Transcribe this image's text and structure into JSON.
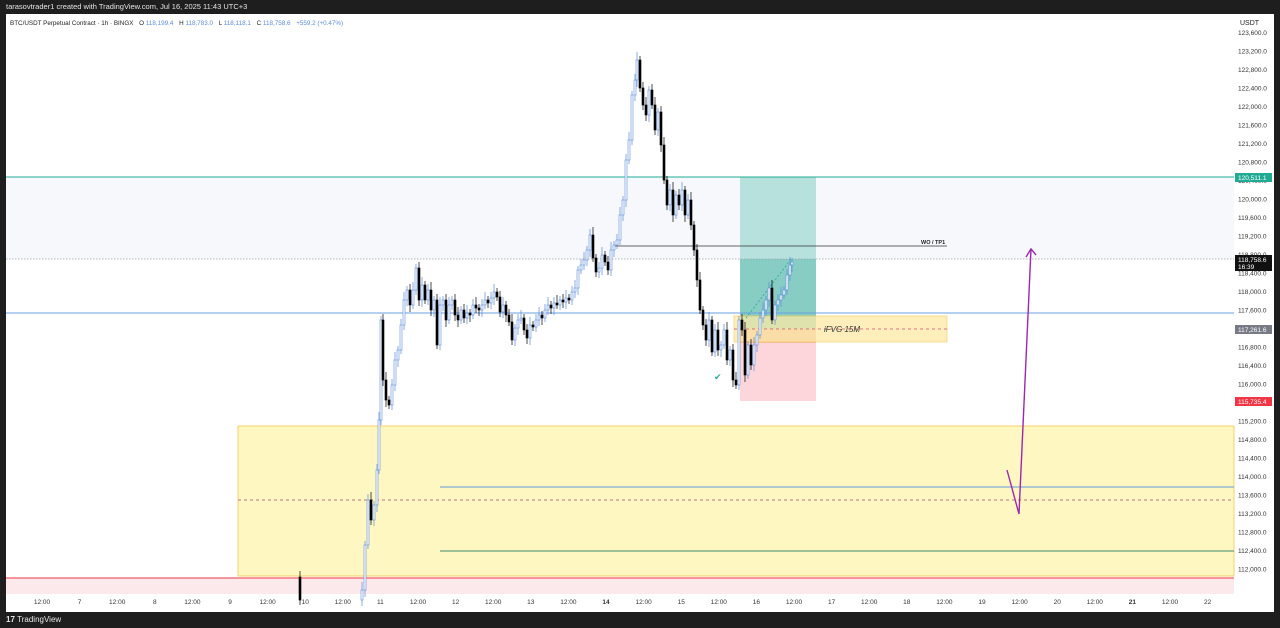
{
  "watermark_header": "tarasovtrader1 created with TradingView.com, Jul 16, 2025 11:43 UTC+3",
  "footer_brand": "TradingView",
  "footer_logo_glyph": "17",
  "currency_label": "USDT",
  "symbol": {
    "title": "BTC/USDT Perpetual Contract · 1h · BINGX",
    "open_label": "O",
    "open": "118,199.4",
    "high_label": "H",
    "high": "118,783.0",
    "low_label": "L",
    "low": "118,118.1",
    "close_label": "C",
    "close": "118,758.6",
    "change": "+559.2 (+0.47%)"
  },
  "price_axis": [
    "123,600.0",
    "123,200.0",
    "122,800.0",
    "122,400.0",
    "122,000.0",
    "121,600.0",
    "121,200.0",
    "120,800.0",
    "120,400.0",
    "120,000.0",
    "119,600.0",
    "119,200.0",
    "118,800.0",
    "118,400.0",
    "118,000.0",
    "117,600.0",
    "117,200.0",
    "116,800.0",
    "116,400.0",
    "116,000.0",
    "115,600.0",
    "115,200.0",
    "114,800.0",
    "114,400.0",
    "114,000.0",
    "113,600.0",
    "113,200.0",
    "112,800.0",
    "112,400.0",
    "112,000.0"
  ],
  "time_axis": [
    "12:00",
    "7",
    "12:00",
    "8",
    "12:00",
    "9",
    "12:00",
    "10",
    "12:00",
    "11",
    "12:00",
    "12",
    "12:00",
    "13",
    "12:00",
    "14",
    "12:00",
    "15",
    "12:00",
    "16",
    "12:00",
    "17",
    "12:00",
    "18",
    "12:00",
    "19",
    "12:00",
    "20",
    "12:00",
    "21",
    "12:00",
    "22"
  ],
  "time_axis_bold": [
    "14",
    "21"
  ],
  "price_tags": {
    "target": "120,511.1",
    "last_price": "118,758.6",
    "countdown": "16:39",
    "entry": "117,261.6",
    "stop": "115,735.4"
  },
  "annotations": {
    "tp_label": "WO / TP1",
    "fvg_label": "iFVG 15M"
  },
  "colors": {
    "bull_candle": "#5b8bd9",
    "bear_candle": "#000000",
    "target_line": "#22ab94",
    "stop_line": "#f23645",
    "support_line": "#6a9fe0",
    "fvg_zone": "#fff7c2",
    "arrow": "#9c27b0",
    "profit_zone": "#b2dfdb",
    "loss_zone": "#fcd6da"
  },
  "icons": {
    "checkmark": "check-icon",
    "arrow": "arrow-icon"
  }
}
